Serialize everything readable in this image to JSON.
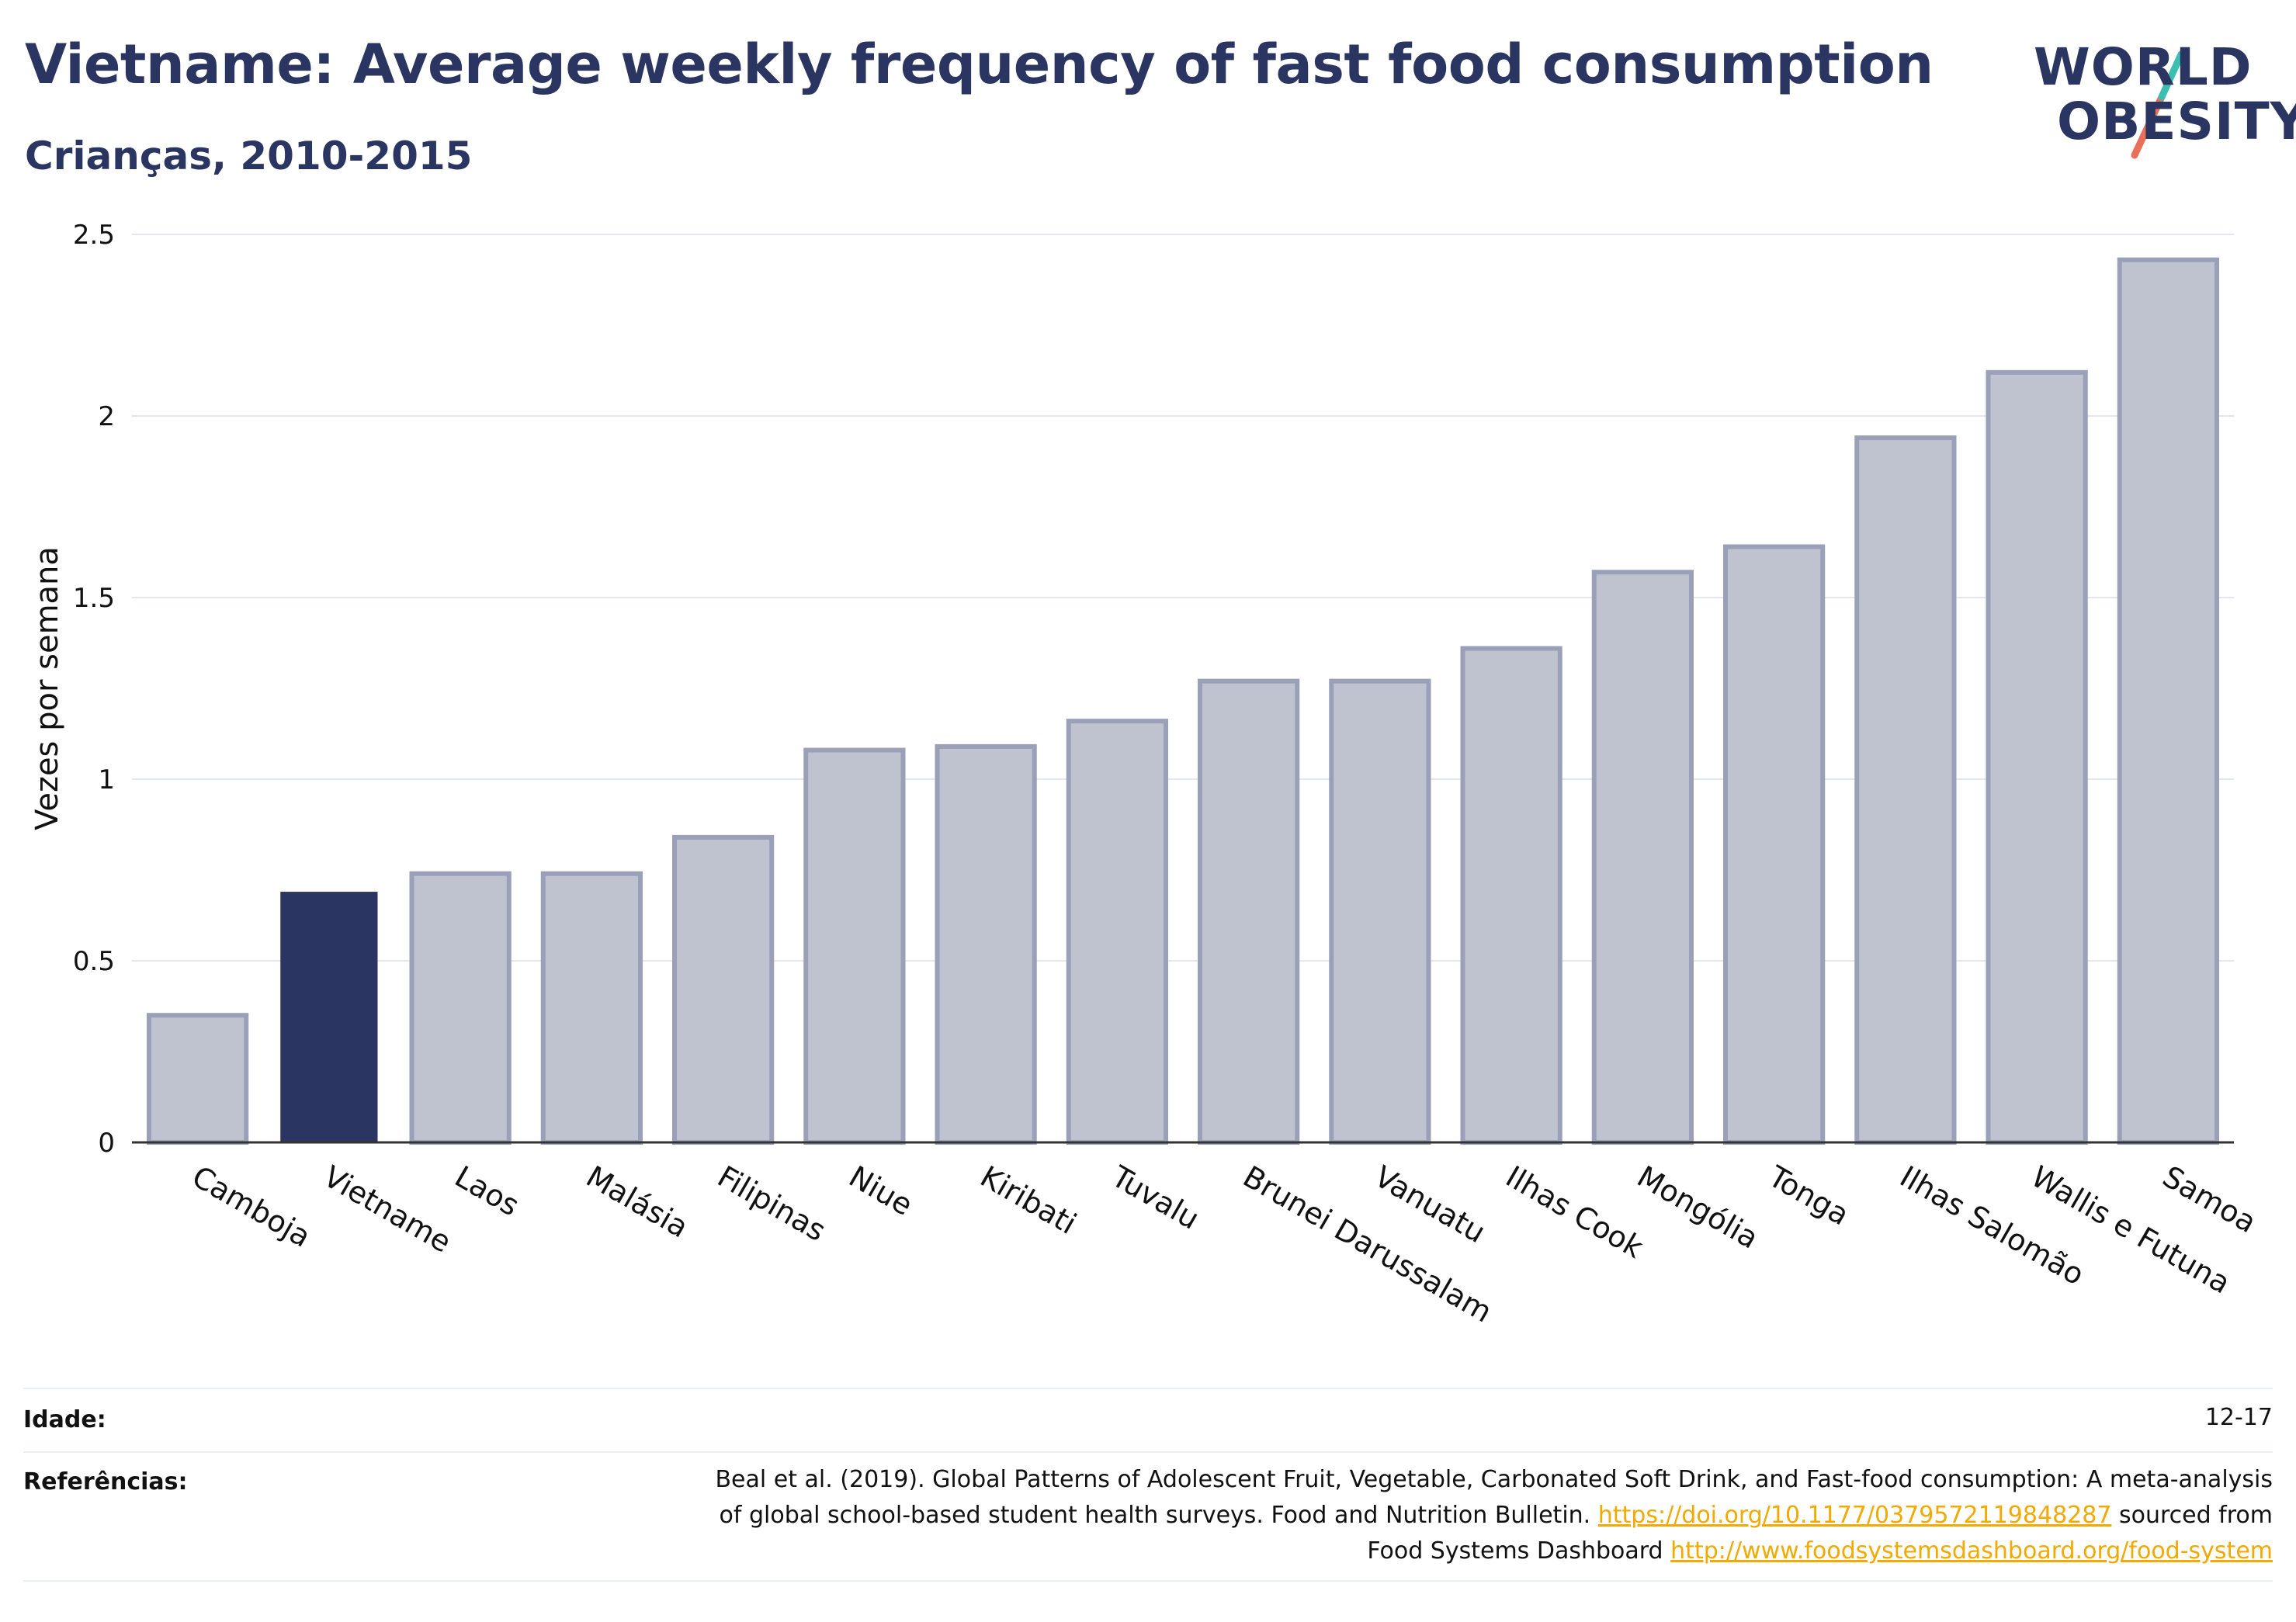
{
  "header": {
    "title": "Vietname: Average weekly frequency of fast food consumption",
    "subtitle": "Crianças, 2010-2015"
  },
  "logo": {
    "line1": "WORLD",
    "line2": "OBESITY"
  },
  "colors": {
    "highlight": "#2b3561",
    "bar_fill": "#bfc3d0",
    "bar_stroke": "#9aa0b8",
    "title": "#2b3561",
    "link": "#f2a900"
  },
  "chart_data": {
    "type": "bar",
    "ylabel": "Vezes por semana",
    "ylim": [
      0,
      2.5
    ],
    "yticks": [
      "0",
      "0.5",
      "1",
      "1.5",
      "2",
      "2.5"
    ],
    "grid": true,
    "highlight_category": "Vietname",
    "categories": [
      "Camboja",
      "Vietname",
      "Laos",
      "Malásia",
      "Filipinas",
      "Niue",
      "Kiribati",
      "Tuvalu",
      "Brunei Darussalam",
      "Vanuatu",
      "Ilhas Cook",
      "Mongólia",
      "Tonga",
      "Ilhas Salomão",
      "Wallis e Futuna",
      "Samoa"
    ],
    "values": [
      0.35,
      0.69,
      0.74,
      0.74,
      0.84,
      1.08,
      1.09,
      1.16,
      1.27,
      1.27,
      1.36,
      1.57,
      1.64,
      1.94,
      2.12,
      2.43
    ]
  },
  "footer": {
    "age_label": "Idade:",
    "age_value": "12-17",
    "ref_label": "Referências:",
    "ref_line1": "Beal et al. (2019). Global Patterns of Adolescent Fruit, Vegetable, Carbonated Soft Drink, and Fast-food consumption: A meta-analysis",
    "ref_line2_text": "of global school-based student health surveys. Food and Nutrition Bulletin.",
    "ref_link1": "https://doi.org/10.1177/0379572119848287",
    "ref_line2_tail": "sourced from",
    "ref_line3_text": "Food Systems Dashboard",
    "ref_link2": "http://www.foodsystemsdashboard.org/food-system"
  }
}
